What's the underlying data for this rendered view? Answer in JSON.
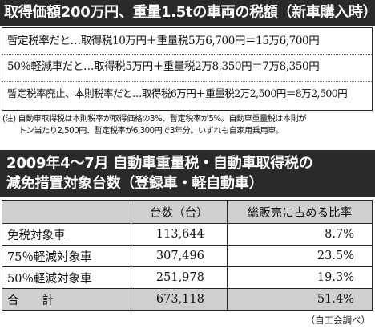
{
  "header": {
    "title": "取得価額200万円、重量1.5tの車両の税額（新車購入時）"
  },
  "calculations": [
    {
      "text": "暫定税率だと…取得税10万円＋重量税5万6,700円＝15万6,700円"
    },
    {
      "text": "50％軽減車だと…取得税5万円＋重量税2万8,350円＝7万8,350円"
    },
    {
      "text": "暫定税率廃止、本則税率だと…取得税6万円＋重量税2万2,500円＝8万2,500円"
    }
  ],
  "note": {
    "line1": "(注) 自動車取得税は本則税率が取得価格の3%、暫定税率が5%。自動車重量税は本則が",
    "line2": "トン当たり2,500円、暫定税率が6,300円で3年分。いずれも自家用乗用車。"
  },
  "section2": {
    "title_line1": "2009年4〜7月 自動車重量税・自動車取得税の",
    "title_line2": "減免措置対象台数（登録車・軽自動車）"
  },
  "table": {
    "headers": [
      "",
      "台数（台）",
      "総販売に占める比率"
    ],
    "rows": [
      {
        "label": "免税対象車",
        "count": "113,644",
        "ratio": "8.7%"
      },
      {
        "label": "75％軽減対象車",
        "count": "307,496",
        "ratio": "23.5%"
      },
      {
        "label": "50％軽減対象車",
        "count": "251,978",
        "ratio": "19.3%"
      }
    ],
    "total": {
      "label": "合　　計",
      "count": "673,118",
      "ratio": "51.4%"
    }
  },
  "source": "（自工会調べ）"
}
